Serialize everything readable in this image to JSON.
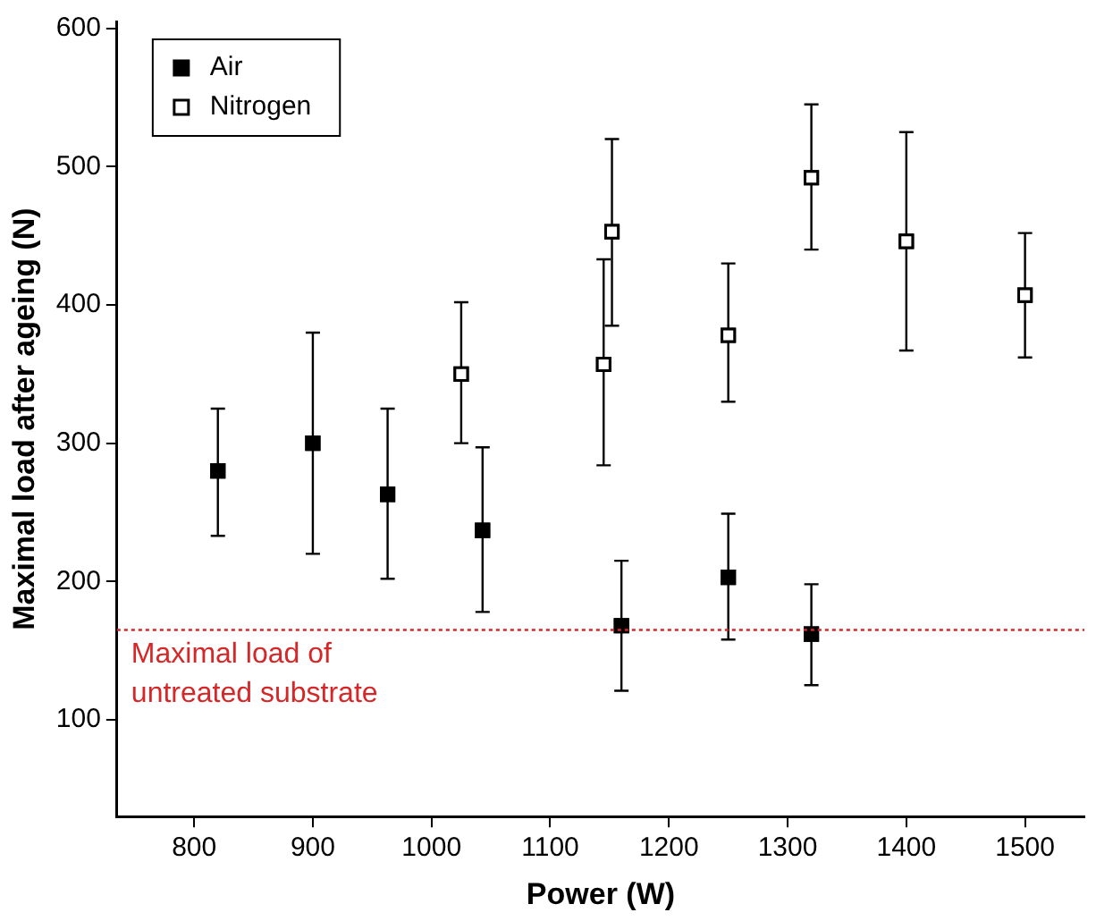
{
  "chart_data": {
    "type": "scatter",
    "xlabel": "Power (W)",
    "ylabel": "Maximal load after ageing (N)",
    "series": [
      {
        "name": "Air",
        "color": "#000000",
        "x": [
          820,
          900,
          963,
          1043,
          1160,
          1250,
          1320
        ],
        "values": [
          280,
          300,
          263,
          237,
          168,
          203,
          162
        ],
        "errors": [
          [
            233,
            325
          ],
          [
            220,
            380
          ],
          [
            202,
            325
          ],
          [
            178,
            297
          ],
          [
            121,
            215
          ],
          [
            158,
            249
          ],
          [
            125,
            198
          ]
        ]
      },
      {
        "name": "Nitrogen",
        "color": "#000000",
        "x": [
          1025,
          1145,
          1152,
          1250,
          1320,
          1400,
          1500
        ],
        "values": [
          350,
          357,
          453,
          378,
          492,
          446,
          407
        ],
        "errors": [
          [
            300,
            402
          ],
          [
            284,
            433
          ],
          [
            385,
            520
          ],
          [
            330,
            430
          ],
          [
            440,
            545
          ],
          [
            367,
            525
          ],
          [
            362,
            452
          ]
        ]
      }
    ],
    "xlim": [
      735,
      1550
    ],
    "xticks": [
      800,
      900,
      1000,
      1100,
      1200,
      1300,
      1400,
      1500
    ],
    "ylim": [
      30,
      605
    ],
    "yticks": [
      100,
      200,
      300,
      400,
      500,
      600
    ],
    "ref_lines": [
      {
        "axis": "y",
        "value": 165,
        "label": "Maximal load of untreated substrate",
        "color": "#d62728",
        "line_style": "dotted"
      }
    ],
    "marker": "square",
    "legend": "top left",
    "grid": false
  }
}
